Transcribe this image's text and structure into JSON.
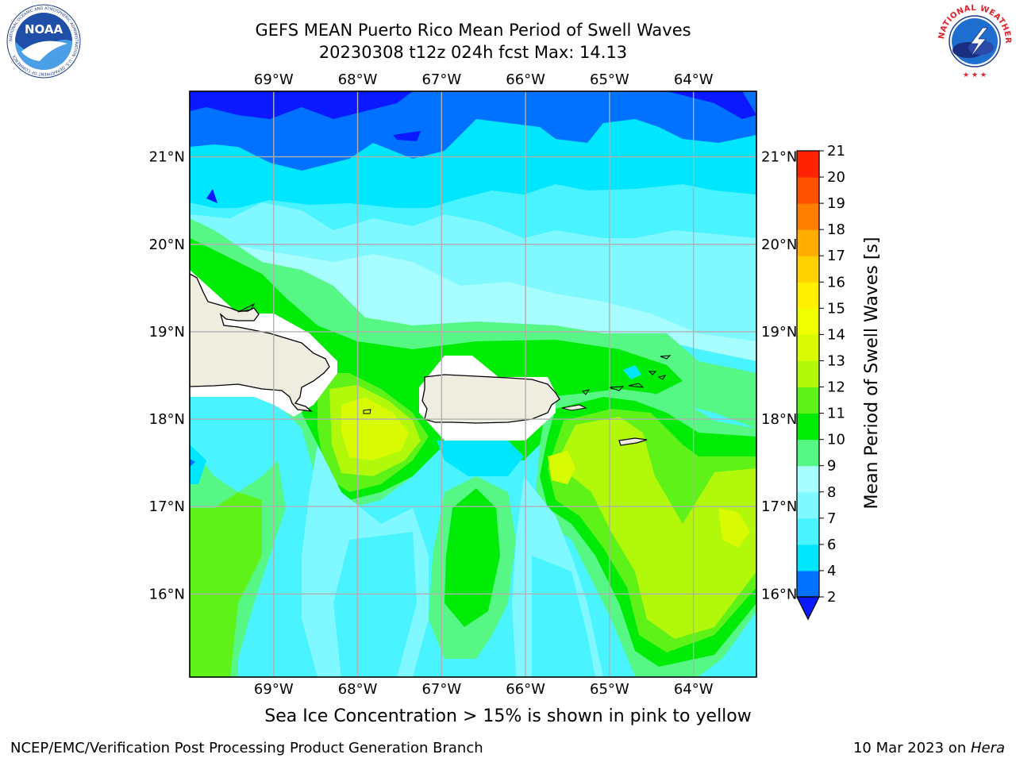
{
  "header": {
    "title_line1": "GEFS MEAN Puerto Rico Mean Period of Swell Waves",
    "title_line2": "20230308 t12z 024h fcst   Max: 14.13"
  },
  "logos": {
    "noaa": {
      "text": "NOAA",
      "ring_text": "NATIONAL OCEANIC AND ATMOSPHERIC ADMINISTRATION · U.S. DEPARTMENT OF COMMERCE"
    },
    "nws": {
      "ring_text": "NATIONAL WEATHER SERVICE"
    }
  },
  "map": {
    "lon_range": [
      -70,
      -63.25
    ],
    "lat_range": [
      15.05,
      21.75
    ],
    "lon_ticks": [
      "69°W",
      "68°W",
      "67°W",
      "66°W",
      "65°W",
      "64°W"
    ],
    "lat_ticks": [
      "21°N",
      "20°N",
      "19°N",
      "18°N",
      "17°N",
      "16°N"
    ],
    "grid": true,
    "land_color": "#efece0"
  },
  "colorbar": {
    "label": "Mean Period of Swell Waves [s]",
    "levels": [
      "2",
      "4",
      "6",
      "7",
      "8",
      "9",
      "10",
      "11",
      "12",
      "13",
      "14",
      "15",
      "16",
      "17",
      "18",
      "19",
      "20",
      "21"
    ],
    "colors": [
      "#0072ff",
      "#00e6ff",
      "#49f3ff",
      "#7ff8ff",
      "#a8fdff",
      "#57f786",
      "#00ec07",
      "#5ef219",
      "#b2f80a",
      "#d8fb04",
      "#f0ff00",
      "#fff000",
      "#ffd200",
      "#ffae00",
      "#ff8000",
      "#ff5200",
      "#ff2200"
    ],
    "extend_color": "#0a19ff"
  },
  "caption": "Sea Ice Concentration > 15% is shown in pink to yellow",
  "footer": {
    "left": "NCEP/EMC/Verification Post Processing Product Generation Branch",
    "right_date": "10 Mar 2023 on ",
    "right_host": "Hera"
  }
}
